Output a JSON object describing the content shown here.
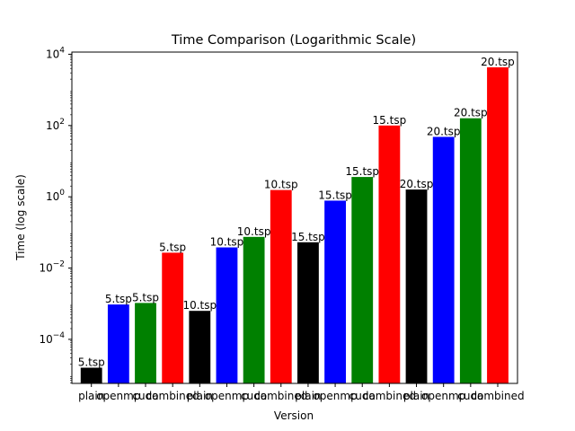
{
  "chart_data": {
    "type": "bar",
    "title": "Time Comparison (Logarithmic Scale)",
    "xlabel": "Version",
    "ylabel": "Time (log scale)",
    "yscale": "log",
    "ylim": [
      5.8e-06,
      11500.0
    ],
    "grid": false,
    "legend": "none",
    "y_ticks": [
      {
        "value": 0.0001,
        "base": "10",
        "exp": "−4"
      },
      {
        "value": 0.01,
        "base": "10",
        "exp": "−2"
      },
      {
        "value": 1.0,
        "base": "10",
        "exp": "0"
      },
      {
        "value": 100.0,
        "base": "10",
        "exp": "2"
      },
      {
        "value": 10000.0,
        "base": "10",
        "exp": "4"
      }
    ],
    "categories": [
      "plain",
      "openmp",
      "cuda",
      "combined",
      "plain",
      "openmp",
      "cuda",
      "combined",
      "plain",
      "openmp",
      "cuda",
      "combined",
      "plain",
      "openmp",
      "cuda",
      "combined"
    ],
    "values": [
      1.6e-05,
      0.00095,
      0.00105,
      0.027,
      0.00063,
      0.038,
      0.075,
      1.55,
      0.053,
      0.78,
      3.6,
      100,
      1.6,
      48,
      160,
      4300
    ],
    "labels": [
      "5.tsp",
      "5.tsp",
      "5.tsp",
      "5.tsp",
      "10.tsp",
      "10.tsp",
      "10.tsp",
      "10.tsp",
      "15.tsp",
      "15.tsp",
      "15.tsp",
      "15.tsp",
      "20.tsp",
      "20.tsp",
      "20.tsp",
      "20.tsp"
    ],
    "colors": [
      "#000000",
      "#0000ff",
      "#008000",
      "#ff0000",
      "#000000",
      "#0000ff",
      "#008000",
      "#ff0000",
      "#000000",
      "#0000ff",
      "#008000",
      "#ff0000",
      "#000000",
      "#0000ff",
      "#008000",
      "#ff0000"
    ]
  }
}
